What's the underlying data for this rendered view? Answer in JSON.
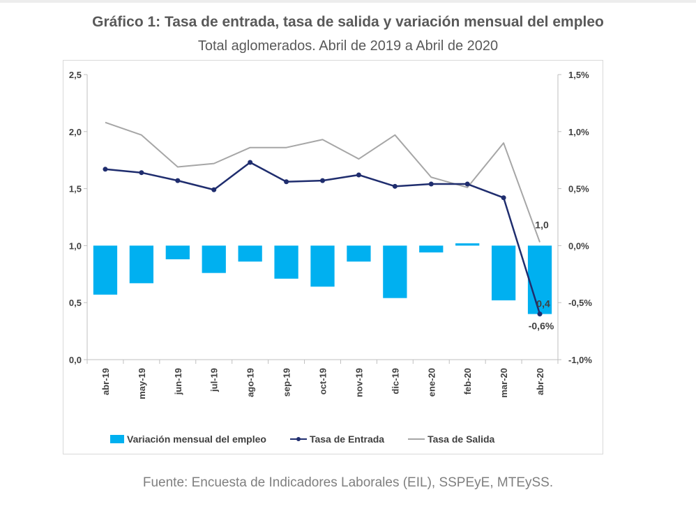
{
  "title": "Gráfico 1: Tasa de entrada, tasa de salida y variación mensual del empleo",
  "subtitle": "Total aglomerados. Abril de 2019 a Abril de 2020",
  "source": "Fuente: Encuesta de Indicadores Laborales (EIL), SSPEyE, MTEySS.",
  "chart_data": {
    "type": "bar",
    "categories": [
      "abr-19",
      "may-19",
      "jun-19",
      "jul-19",
      "ago-19",
      "sep-19",
      "oct-19",
      "nov-19",
      "dic-19",
      "ene-20",
      "feb-20",
      "mar-20",
      "abr-20"
    ],
    "left_axis": {
      "ticks": [
        "0,0",
        "0,5",
        "1,0",
        "1,5",
        "2,0",
        "2,5"
      ],
      "range": [
        0,
        2.5
      ]
    },
    "right_axis": {
      "ticks": [
        "-1,0%",
        "-0,5%",
        "0,0%",
        "0,5%",
        "1,0%",
        "1,5%"
      ],
      "range": [
        -1.0,
        1.5
      ]
    },
    "grid": false,
    "legend_position": "bottom",
    "series": [
      {
        "name": "Variación mensual del empleo",
        "kind": "bar",
        "axis": "right",
        "color": "#00b0f0",
        "values": [
          -0.43,
          -0.33,
          -0.12,
          -0.24,
          -0.14,
          -0.29,
          -0.36,
          -0.14,
          -0.46,
          -0.06,
          0.02,
          -0.48,
          -0.6
        ]
      },
      {
        "name": "Tasa de Entrada",
        "kind": "line",
        "axis": "left",
        "color": "#1f2d6e",
        "markers": true,
        "values": [
          1.67,
          1.64,
          1.57,
          1.49,
          1.73,
          1.56,
          1.57,
          1.62,
          1.52,
          1.54,
          1.54,
          1.42,
          0.4
        ]
      },
      {
        "name": "Tasa de Salida",
        "kind": "line",
        "axis": "left",
        "color": "#a6a6a6",
        "values": [
          2.08,
          1.97,
          1.69,
          1.72,
          1.86,
          1.86,
          1.93,
          1.76,
          1.97,
          1.6,
          1.51,
          1.9,
          1.03
        ]
      }
    ],
    "data_labels": [
      {
        "text": "1,0",
        "series": "Tasa de Salida",
        "category": "abr-20"
      },
      {
        "text": "0,4",
        "series": "Tasa de Entrada",
        "category": "abr-20"
      },
      {
        "text": "-0,6%",
        "series": "Variación mensual del empleo",
        "category": "abr-20"
      }
    ]
  }
}
